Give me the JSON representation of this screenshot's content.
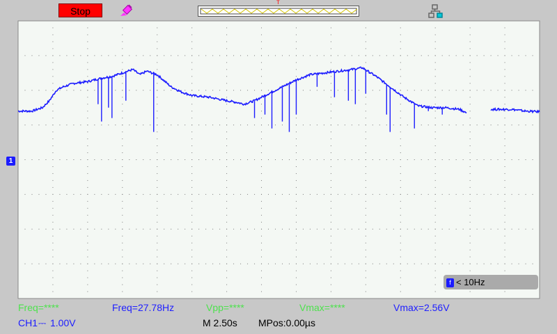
{
  "header": {
    "run_state": "Stop",
    "trigger_marker": "T"
  },
  "colors": {
    "background": "#c8c8c8",
    "screen": "#f4f8f4",
    "grid": "#7a7a7a",
    "trace": "#1c1cff",
    "stop_badge": "#ff0000",
    "measure_green": "#4de24d",
    "measure_blue": "#2020ff"
  },
  "icons": {
    "probe": "probe-icon",
    "usb": "usb-connected-icon",
    "channel": "channel-1-marker-icon"
  },
  "channel_marker": "1",
  "frequency_counter": {
    "badge": "f",
    "text": "< 10Hz"
  },
  "measurements": [
    {
      "text": "Freq=****",
      "color": "green"
    },
    {
      "text": "Freq=27.78Hz",
      "color": "blue"
    },
    {
      "text": "Vpp=****",
      "color": "green"
    },
    {
      "text": "Vmax=****",
      "color": "green"
    },
    {
      "text": "Vmax=2.56V",
      "color": "blue"
    }
  ],
  "status": {
    "channel": "CH1",
    "coupling_symbol": "⎓",
    "volts_per_div": "1.00V",
    "timebase": "M 2.50s",
    "position": "MPos:0.00µs"
  },
  "chart_data": {
    "type": "line",
    "grid": {
      "x_divisions": 15,
      "y_divisions": 8
    },
    "x_range": [
      0,
      15
    ],
    "y_range": [
      -4,
      4
    ],
    "series": [
      {
        "segments": [
          [
            [
              0,
              1.4
            ],
            [
              0.4,
              1.4
            ],
            [
              0.7,
              1.5
            ],
            [
              0.9,
              1.7
            ],
            [
              1.1,
              2.0
            ],
            [
              1.3,
              2.1
            ],
            [
              1.6,
              2.2
            ],
            [
              2.0,
              2.25
            ],
            [
              2.4,
              2.35
            ],
            [
              2.7,
              2.4
            ],
            [
              3.0,
              2.5
            ],
            [
              3.3,
              2.6
            ],
            [
              3.5,
              2.45
            ],
            [
              3.7,
              2.55
            ],
            [
              4.0,
              2.45
            ],
            [
              4.4,
              2.1
            ],
            [
              4.7,
              1.95
            ],
            [
              5.0,
              1.85
            ],
            [
              5.5,
              1.8
            ],
            [
              6.0,
              1.7
            ],
            [
              6.3,
              1.65
            ],
            [
              6.5,
              1.6
            ],
            [
              6.8,
              1.7
            ],
            [
              7.2,
              1.9
            ],
            [
              7.6,
              2.1
            ],
            [
              8.0,
              2.3
            ],
            [
              8.4,
              2.45
            ],
            [
              8.8,
              2.5
            ],
            [
              9.2,
              2.55
            ],
            [
              9.6,
              2.6
            ],
            [
              9.9,
              2.65
            ],
            [
              10.3,
              2.4
            ],
            [
              10.7,
              2.1
            ],
            [
              11.1,
              1.8
            ],
            [
              11.5,
              1.55
            ],
            [
              11.9,
              1.5
            ],
            [
              12.3,
              1.5
            ],
            [
              12.7,
              1.45
            ],
            [
              12.9,
              1.35
            ]
          ],
          [
            [
              13.6,
              1.45
            ],
            [
              14.2,
              1.45
            ],
            [
              14.6,
              1.4
            ],
            [
              15,
              1.38
            ]
          ]
        ]
      }
    ],
    "spikes": [
      [
        2.3,
        1.6
      ],
      [
        2.4,
        1.1
      ],
      [
        2.6,
        1.5
      ],
      [
        2.7,
        1.2
      ],
      [
        3.1,
        1.7
      ],
      [
        3.9,
        0.8
      ],
      [
        6.8,
        1.2
      ],
      [
        7.1,
        1.3
      ],
      [
        7.3,
        0.9
      ],
      [
        7.6,
        1.1
      ],
      [
        7.8,
        0.8
      ],
      [
        8.0,
        1.3
      ],
      [
        8.6,
        2.1
      ],
      [
        9.1,
        1.8
      ],
      [
        9.5,
        1.7
      ],
      [
        9.7,
        1.6
      ],
      [
        10.0,
        1.9
      ],
      [
        10.6,
        1.3
      ],
      [
        10.7,
        0.8
      ],
      [
        11.4,
        0.9
      ],
      [
        11.8,
        1.4
      ],
      [
        12.2,
        1.3
      ]
    ]
  }
}
